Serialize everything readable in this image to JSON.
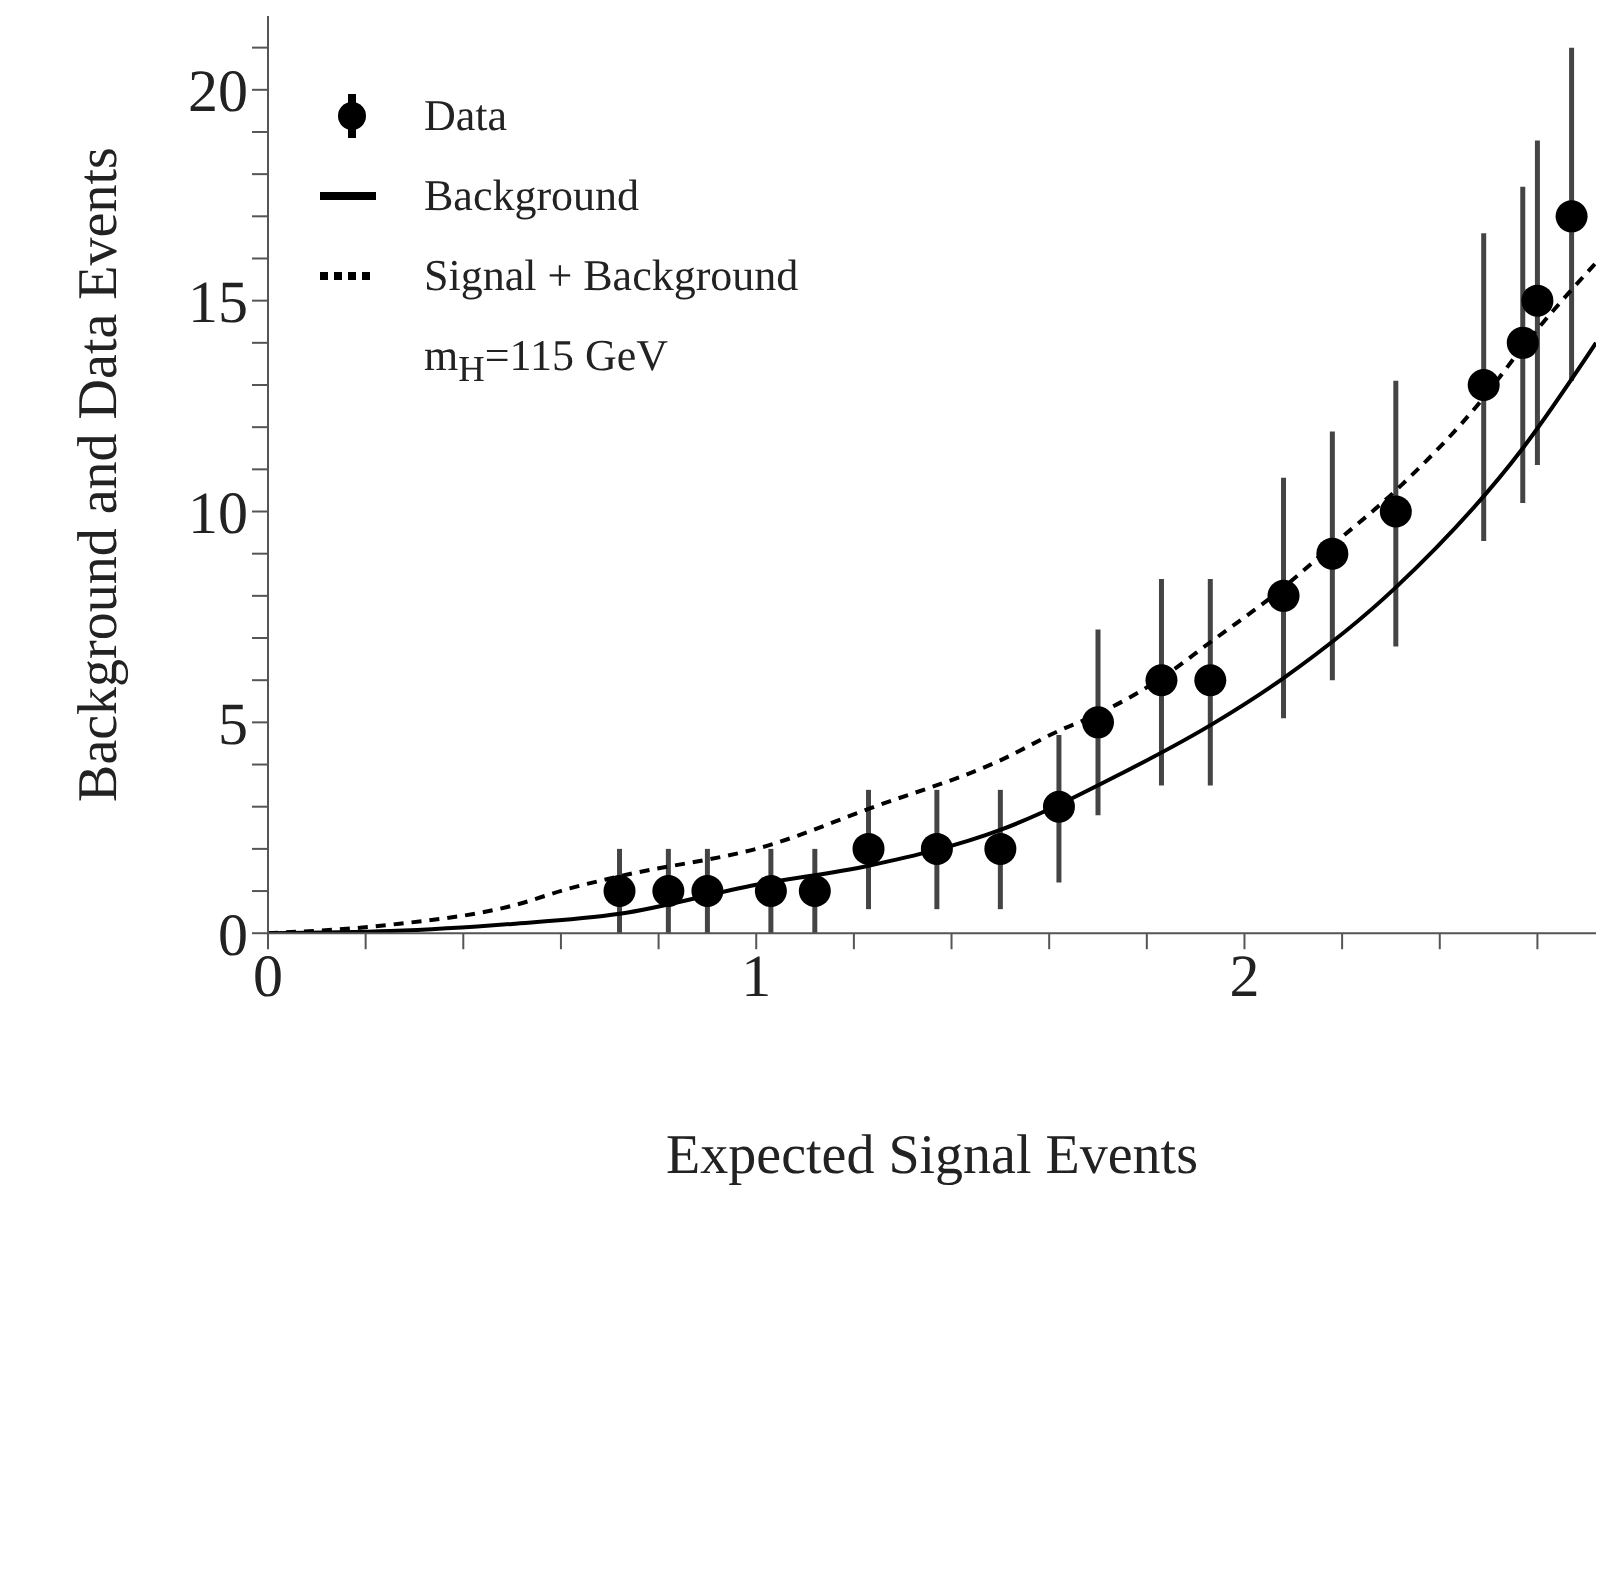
{
  "chart_data": {
    "type": "scatter",
    "xlabel": "Expected Signal Events",
    "ylabel": "Background and Data Events",
    "annotations": [
      "m$_{H}$=115 GeV"
    ],
    "xlim": [
      0,
      2.72
    ],
    "ylim": [
      0,
      21.75
    ],
    "xticks": [
      0,
      {
        "value": 0.2,
        "label": null
      },
      {
        "value": 0.4,
        "label": null
      },
      {
        "value": 0.6,
        "label": null
      },
      {
        "value": 0.8,
        "label": null
      },
      1,
      {
        "value": 1.2,
        "label": null
      },
      {
        "value": 1.4,
        "label": null
      },
      {
        "value": 1.6,
        "label": null
      },
      {
        "value": 1.8,
        "label": null
      },
      2,
      {
        "value": 2.2,
        "label": null
      },
      {
        "value": 2.4,
        "label": null
      },
      {
        "value": 2.6,
        "label": null
      }
    ],
    "yticks": [
      0,
      {
        "value": 1,
        "label": null
      },
      {
        "value": 2,
        "label": null
      },
      {
        "value": 3,
        "label": null
      },
      {
        "value": 4,
        "label": null
      },
      5,
      {
        "value": 6,
        "label": null
      },
      {
        "value": 7,
        "label": null
      },
      {
        "value": 8,
        "label": null
      },
      {
        "value": 9,
        "label": null
      },
      10,
      {
        "value": 11,
        "label": null
      },
      {
        "value": 12,
        "label": null
      },
      {
        "value": 13,
        "label": null
      },
      {
        "value": 14,
        "label": null
      },
      15,
      {
        "value": 16,
        "label": null
      },
      {
        "value": 17,
        "label": null
      },
      {
        "value": 18,
        "label": null
      },
      {
        "value": 19,
        "label": null
      },
      20,
      {
        "value": 21,
        "label": null
      }
    ],
    "grid": false,
    "legend": "top left",
    "series": [
      {
        "name": "Data",
        "color": "#000000",
        "marker": "circle",
        "x": [
          0.72,
          0.82,
          0.9,
          1.03,
          1.12,
          1.23,
          1.37,
          1.5,
          1.62,
          1.7,
          1.83,
          1.93,
          2.08,
          2.18,
          2.31,
          2.49,
          2.57,
          2.6,
          2.67
        ],
        "values": [
          1,
          1,
          1,
          1,
          1,
          2,
          2,
          2,
          3,
          5,
          6,
          6,
          8,
          9,
          10,
          13,
          14,
          15,
          17
        ],
        "errors": [
          [
            0,
            2
          ],
          [
            0,
            2
          ],
          [
            0,
            2
          ],
          [
            0,
            2
          ],
          [
            0,
            2
          ],
          [
            0.57,
            3.4
          ],
          [
            0.57,
            3.4
          ],
          [
            0.57,
            3.4
          ],
          [
            1.2,
            4.7
          ],
          [
            2.8,
            7.2
          ],
          [
            3.5,
            8.4
          ],
          [
            3.5,
            8.4
          ],
          [
            5.1,
            10.8
          ],
          [
            6,
            11.9
          ],
          [
            6.8,
            13.1
          ],
          [
            9.3,
            16.6
          ],
          [
            10.2,
            17.7
          ],
          [
            11.1,
            18.8
          ],
          [
            13.1,
            21
          ]
        ]
      },
      {
        "name": "Background",
        "type": "line",
        "color": "#000000",
        "line_style": "solid",
        "marker": "none",
        "x": [
          0,
          0.25,
          0.5,
          0.72,
          1,
          1.23,
          1.5,
          1.75,
          1.94,
          2.08,
          2.31,
          2.57,
          2.72
        ],
        "values": [
          0,
          0.05,
          0.22,
          0.46,
          1.15,
          1.6,
          2.45,
          3.8,
          5,
          6.05,
          8.2,
          11.5,
          14
        ]
      },
      {
        "name": "Signal + Background",
        "type": "line",
        "color": "#000000",
        "line_style": "dashed",
        "marker": "none",
        "x": [
          0,
          0.25,
          0.5,
          0.62,
          0.72,
          1.03,
          1.23,
          1.5,
          1.62,
          1.7,
          1.83,
          1.93,
          2.08,
          2.18,
          2.31,
          2.49,
          2.57,
          2.72
        ],
        "values": [
          0,
          0.2,
          0.65,
          1.07,
          1.35,
          2.1,
          2.95,
          4.1,
          4.8,
          5.2,
          6.05,
          6.9,
          8.2,
          9.2,
          10.5,
          12.7,
          13.9,
          15.9
        ]
      }
    ]
  }
}
